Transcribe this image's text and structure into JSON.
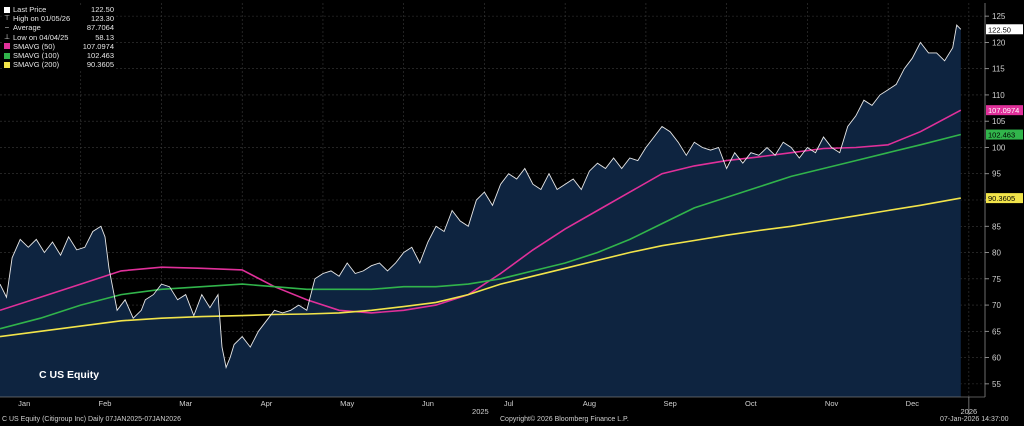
{
  "chart_data": {
    "type": "area",
    "ticker_label": "C US Equity",
    "y_ticks": [
      55,
      60,
      65,
      70,
      75,
      80,
      85,
      90,
      95,
      100,
      105,
      110,
      115,
      120,
      125
    ],
    "ylim": [
      52.5,
      127.5
    ],
    "x_tick_labels": [
      "Jan",
      "Feb",
      "Mar",
      "Apr",
      "May",
      "Jun",
      "Jul",
      "Aug",
      "Sep",
      "Oct",
      "Nov",
      "Dec"
    ],
    "x_tick_positions": [
      0.3,
      1.3,
      2.3,
      3.3,
      4.3,
      5.3,
      6.3,
      7.3,
      8.3,
      9.3,
      10.3,
      11.3
    ],
    "x_year_labels": [
      {
        "label": "2025",
        "x": 5.95
      },
      {
        "label": "2026",
        "x": 12.0
      }
    ],
    "xlim": [
      0,
      12.2
    ],
    "grid": true,
    "legend": [
      {
        "label": "Last Price",
        "value": "122.50",
        "color": "#ffffff",
        "glyph": "square"
      },
      {
        "label": "High on 01/05/26",
        "value": "123.30",
        "color": "#ffffff",
        "glyph": "high"
      },
      {
        "label": "Average",
        "value": "87.7064",
        "color": "#ffffff",
        "glyph": "dash"
      },
      {
        "label": "Low on 04/04/25",
        "value": "58.13",
        "color": "#ffffff",
        "glyph": "low"
      },
      {
        "label": "SMAVG (50)",
        "value": "107.0974",
        "color": "#e0309a",
        "glyph": "square"
      },
      {
        "label": "SMAVG (100)",
        "value": "102.463",
        "color": "#31b44b",
        "glyph": "square"
      },
      {
        "label": "SMAVG (200)",
        "value": "90.3605",
        "color": "#f2e44a",
        "glyph": "square"
      }
    ],
    "tags": [
      {
        "label": "122.50",
        "value": 122.5,
        "color": "#ffffff",
        "text_color": "#000000"
      },
      {
        "label": "107.0974",
        "value": 107.1,
        "color": "#e0309a",
        "text_color": "#ffffff"
      },
      {
        "label": "102.463",
        "value": 102.46,
        "color": "#31b44b",
        "text_color": "#000000"
      },
      {
        "label": "90.3605",
        "value": 90.36,
        "color": "#f2e44a",
        "text_color": "#000000"
      }
    ],
    "series": [
      {
        "name": "Last Price",
        "color": "#e8e8e8",
        "fill": "#0e2440",
        "x": [
          0,
          0.08,
          0.15,
          0.25,
          0.35,
          0.45,
          0.55,
          0.65,
          0.75,
          0.85,
          0.95,
          1.05,
          1.15,
          1.25,
          1.3,
          1.35,
          1.45,
          1.55,
          1.65,
          1.75,
          1.8,
          1.9,
          2.0,
          2.1,
          2.2,
          2.3,
          2.4,
          2.5,
          2.6,
          2.7,
          2.75,
          2.8,
          2.85,
          2.9,
          3.0,
          3.1,
          3.2,
          3.3,
          3.4,
          3.5,
          3.6,
          3.7,
          3.8,
          3.9,
          4.0,
          4.1,
          4.2,
          4.3,
          4.4,
          4.5,
          4.6,
          4.7,
          4.8,
          4.9,
          5.0,
          5.1,
          5.2,
          5.3,
          5.4,
          5.5,
          5.6,
          5.7,
          5.8,
          5.9,
          6.0,
          6.1,
          6.2,
          6.3,
          6.4,
          6.5,
          6.6,
          6.7,
          6.8,
          6.9,
          7.0,
          7.1,
          7.2,
          7.3,
          7.4,
          7.5,
          7.6,
          7.7,
          7.8,
          7.9,
          8.0,
          8.1,
          8.2,
          8.3,
          8.4,
          8.5,
          8.6,
          8.7,
          8.8,
          8.9,
          9.0,
          9.1,
          9.2,
          9.3,
          9.4,
          9.5,
          9.6,
          9.7,
          9.8,
          9.9,
          10.0,
          10.1,
          10.2,
          10.3,
          10.4,
          10.5,
          10.6,
          10.7,
          10.8,
          10.9,
          11.0,
          11.1,
          11.2,
          11.3,
          11.4,
          11.5,
          11.6,
          11.7,
          11.8,
          11.85,
          11.9
        ],
        "values": [
          74,
          71.5,
          79,
          82.5,
          81,
          82.5,
          80,
          82,
          79.5,
          83,
          80.5,
          81,
          84,
          85,
          83,
          77,
          69,
          71,
          67.5,
          69,
          71,
          72,
          74,
          73.5,
          71,
          72,
          68,
          72,
          69.5,
          72,
          62,
          58.13,
          60,
          62.5,
          64,
          62,
          65,
          67,
          69,
          68.5,
          69,
          70,
          69,
          75,
          76,
          76.5,
          75.5,
          78,
          76,
          76.5,
          77.5,
          78,
          76.5,
          78,
          80,
          81,
          78,
          82,
          85,
          84,
          88,
          86,
          85,
          90,
          91.5,
          89,
          93,
          95,
          94,
          96,
          93,
          92,
          95,
          92,
          93,
          94,
          92,
          95.5,
          97,
          96,
          98,
          96,
          98,
          97.5,
          100,
          102,
          104,
          103,
          101,
          98.5,
          101,
          100,
          99.5,
          100,
          96,
          99,
          97,
          99,
          98.5,
          100,
          98.5,
          101,
          100,
          98,
          100,
          99,
          102,
          100,
          99,
          104,
          106,
          109,
          108,
          110,
          111,
          112,
          115,
          117,
          120,
          118,
          118,
          116.5,
          119,
          123.3,
          122.5
        ]
      },
      {
        "name": "SMAVG (50)",
        "color": "#e0309a",
        "x": [
          0,
          0.5,
          1.0,
          1.5,
          2.0,
          2.5,
          3.0,
          3.4,
          3.8,
          4.2,
          4.6,
          5.0,
          5.4,
          5.8,
          6.2,
          6.6,
          7.0,
          7.4,
          7.8,
          8.2,
          8.6,
          9.0,
          9.4,
          9.8,
          10.2,
          10.6,
          11.0,
          11.4,
          11.9
        ],
        "values": [
          69,
          71.5,
          74,
          76.5,
          77.2,
          77,
          76.7,
          73.5,
          71,
          69,
          68.5,
          69,
          70,
          72,
          76,
          80.5,
          84.5,
          88,
          91.5,
          95,
          96.5,
          97.5,
          98.2,
          99,
          99.8,
          100,
          100.5,
          103,
          107.1
        ]
      },
      {
        "name": "SMAVG (100)",
        "color": "#31b44b",
        "x": [
          0,
          0.5,
          1.0,
          1.5,
          2.0,
          2.5,
          3.0,
          3.4,
          3.8,
          4.2,
          4.6,
          5.0,
          5.4,
          5.8,
          6.2,
          6.6,
          7.0,
          7.4,
          7.8,
          8.2,
          8.6,
          9.0,
          9.4,
          9.8,
          10.2,
          10.6,
          11.0,
          11.4,
          11.9
        ],
        "values": [
          65.5,
          67.5,
          70,
          72,
          73,
          73.5,
          74,
          73.5,
          73,
          73,
          73,
          73.5,
          73.5,
          74,
          75,
          76.5,
          78,
          80,
          82.5,
          85.5,
          88.5,
          90.5,
          92.5,
          94.5,
          96,
          97.5,
          99,
          100.5,
          102.46
        ]
      },
      {
        "name": "SMAVG (200)",
        "color": "#f2e44a",
        "x": [
          0,
          0.5,
          1.0,
          1.5,
          2.0,
          2.5,
          3.0,
          3.4,
          3.8,
          4.2,
          4.6,
          5.0,
          5.4,
          5.8,
          6.2,
          6.6,
          7.0,
          7.4,
          7.8,
          8.2,
          8.6,
          9.0,
          9.4,
          9.8,
          10.2,
          10.6,
          11.0,
          11.4,
          11.9
        ],
        "values": [
          64,
          65,
          66,
          67,
          67.5,
          67.8,
          68,
          68.2,
          68.3,
          68.5,
          69,
          69.7,
          70.5,
          72,
          74,
          75.5,
          77,
          78.5,
          80,
          81.3,
          82.3,
          83.3,
          84.2,
          85,
          86,
          87,
          88,
          89,
          90.36
        ]
      }
    ]
  },
  "footer": {
    "left": "C US Equity (Citigroup Inc) Daily 07JAN2025-07JAN2026",
    "center": "Copyright© 2026 Bloomberg Finance L.P.",
    "right": "07-Jan-2026 14:37:00"
  },
  "colors": {
    "background": "#000000",
    "grid": "#3a3a3a",
    "axis_text": "#d0d0d0"
  }
}
